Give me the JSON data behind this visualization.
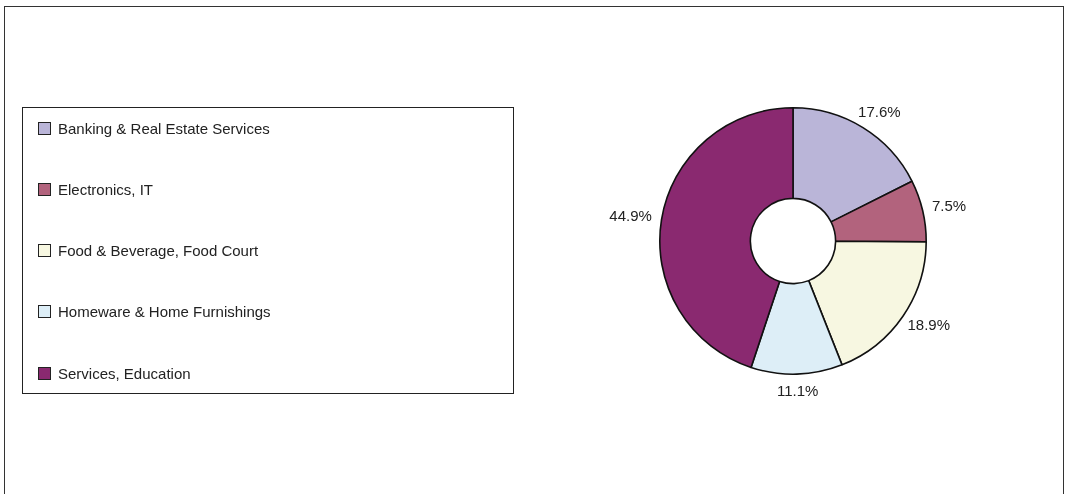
{
  "chart_data": {
    "type": "donut",
    "categories": [
      "Banking & Real Estate Services",
      "Electronics, IT",
      "Food & Beverage, Food Court",
      "Homeware & Home Furnishings",
      "Services, Education"
    ],
    "values": [
      17.6,
      7.5,
      18.9,
      11.1,
      44.9
    ],
    "colors": [
      "#bab5d8",
      "#b2637d",
      "#f7f7e1",
      "#ddeef7",
      "#8a2970"
    ],
    "value_labels": [
      "17.6%",
      "7.5%",
      "18.9%",
      "11.1%",
      "44.9%"
    ],
    "legend": "left"
  }
}
